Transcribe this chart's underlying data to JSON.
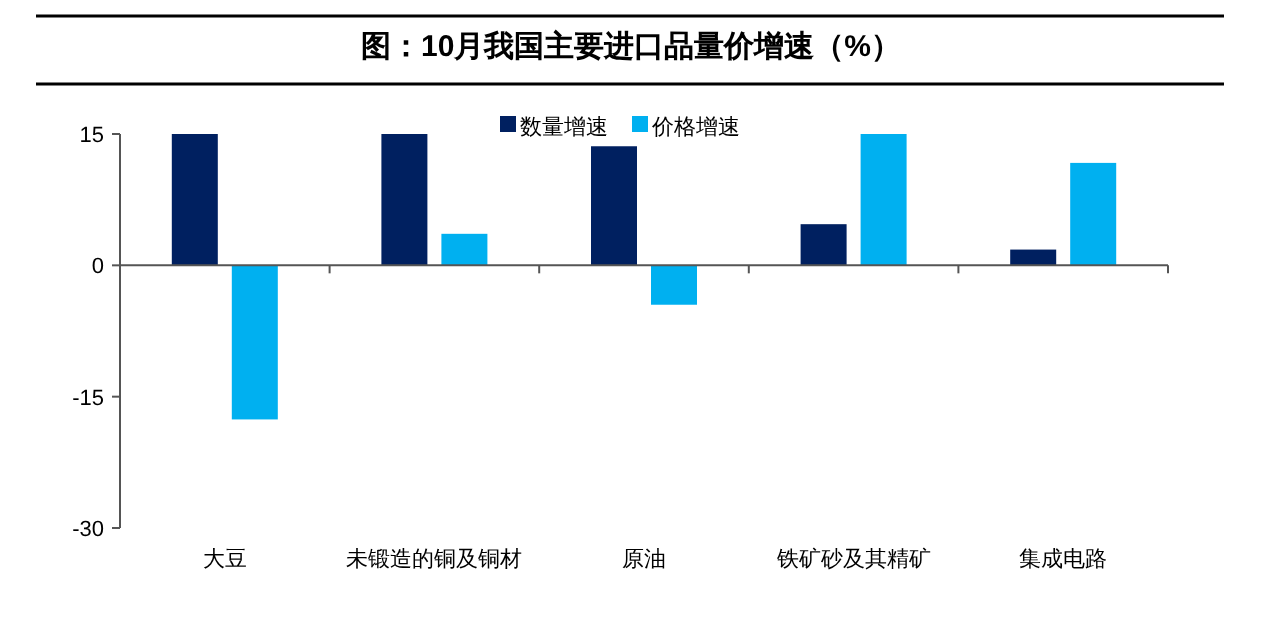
{
  "chart_data": {
    "type": "bar",
    "title": "图：10月我国主要进口品量价增速（%）",
    "categories": [
      "大豆",
      "未锻造的铜及铜材",
      "原油",
      "铁矿砂及其精矿",
      "集成电路"
    ],
    "series": [
      {
        "name": "数量增速",
        "color": "#002060",
        "values": [
          15.0,
          15.0,
          13.6,
          4.7,
          1.8
        ]
      },
      {
        "name": "价格增速",
        "color": "#00b0f0",
        "values": [
          -17.6,
          3.6,
          -4.5,
          15.0,
          11.7
        ]
      }
    ],
    "ylim": [
      -30,
      15
    ],
    "yticks": [
      -30,
      -15,
      0,
      15
    ],
    "legend": "top"
  }
}
